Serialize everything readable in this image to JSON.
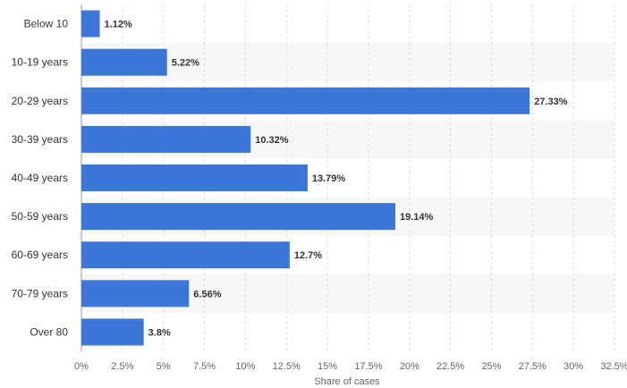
{
  "chart_data": {
    "type": "bar",
    "orientation": "horizontal",
    "categories": [
      "Below 10",
      "10-19 years",
      "20-29 years",
      "30-39 years",
      "40-49 years",
      "50-59 years",
      "60-69 years",
      "70-79 years",
      "Over 80"
    ],
    "values": [
      1.12,
      5.22,
      27.33,
      10.32,
      13.79,
      19.14,
      12.7,
      6.56,
      3.8
    ],
    "data_labels": [
      "1.12%",
      "5.22%",
      "27.33%",
      "10.32%",
      "13.79%",
      "19.14%",
      "12.7%",
      "6.56%",
      "3.8%"
    ],
    "xticks": [
      0,
      2.5,
      5,
      7.5,
      10,
      12.5,
      15,
      17.5,
      20,
      22.5,
      25,
      27.5,
      30,
      32.5
    ],
    "xtick_labels": [
      "0%",
      "2.5%",
      "5%",
      "7.5%",
      "10%",
      "12.5%",
      "15%",
      "17.5%",
      "20%",
      "22.5%",
      "25%",
      "27.5%",
      "30%",
      "32.5%"
    ],
    "xlim": [
      0,
      32.5
    ],
    "xlabel": "Share of cases",
    "ylabel": "",
    "title": "",
    "grid": true,
    "bar_color": "#3c76d8",
    "band_color": "#f7f7f7",
    "grid_color": "#dcdcdc"
  }
}
